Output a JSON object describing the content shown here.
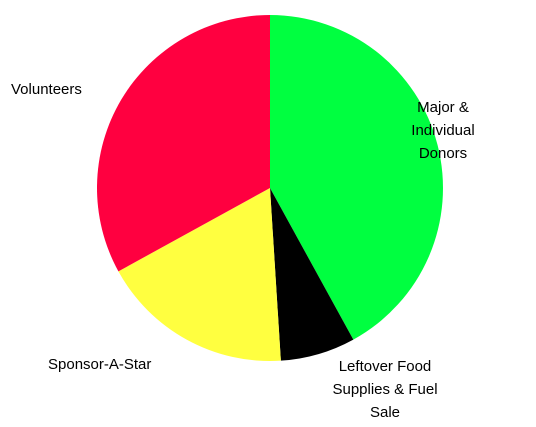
{
  "chart_data": {
    "type": "pie",
    "start_angle_deg": 0,
    "direction": "clockwise",
    "slices": [
      {
        "label": [
          "Major &",
          "Individual",
          "Donors"
        ],
        "value": 42,
        "color": "#00ff40"
      },
      {
        "label": [
          "Leftover Food",
          "Supplies & Fuel",
          "Sale"
        ],
        "value": 7,
        "color": "#000000"
      },
      {
        "label": [
          "Sponsor-A-Star"
        ],
        "value": 18,
        "color": "#ffff40"
      },
      {
        "label": [
          "Volunteers"
        ],
        "value": 33,
        "color": "#ff0040"
      }
    ],
    "title": "",
    "legend": "none",
    "data_labels": "category-names-outside"
  }
}
